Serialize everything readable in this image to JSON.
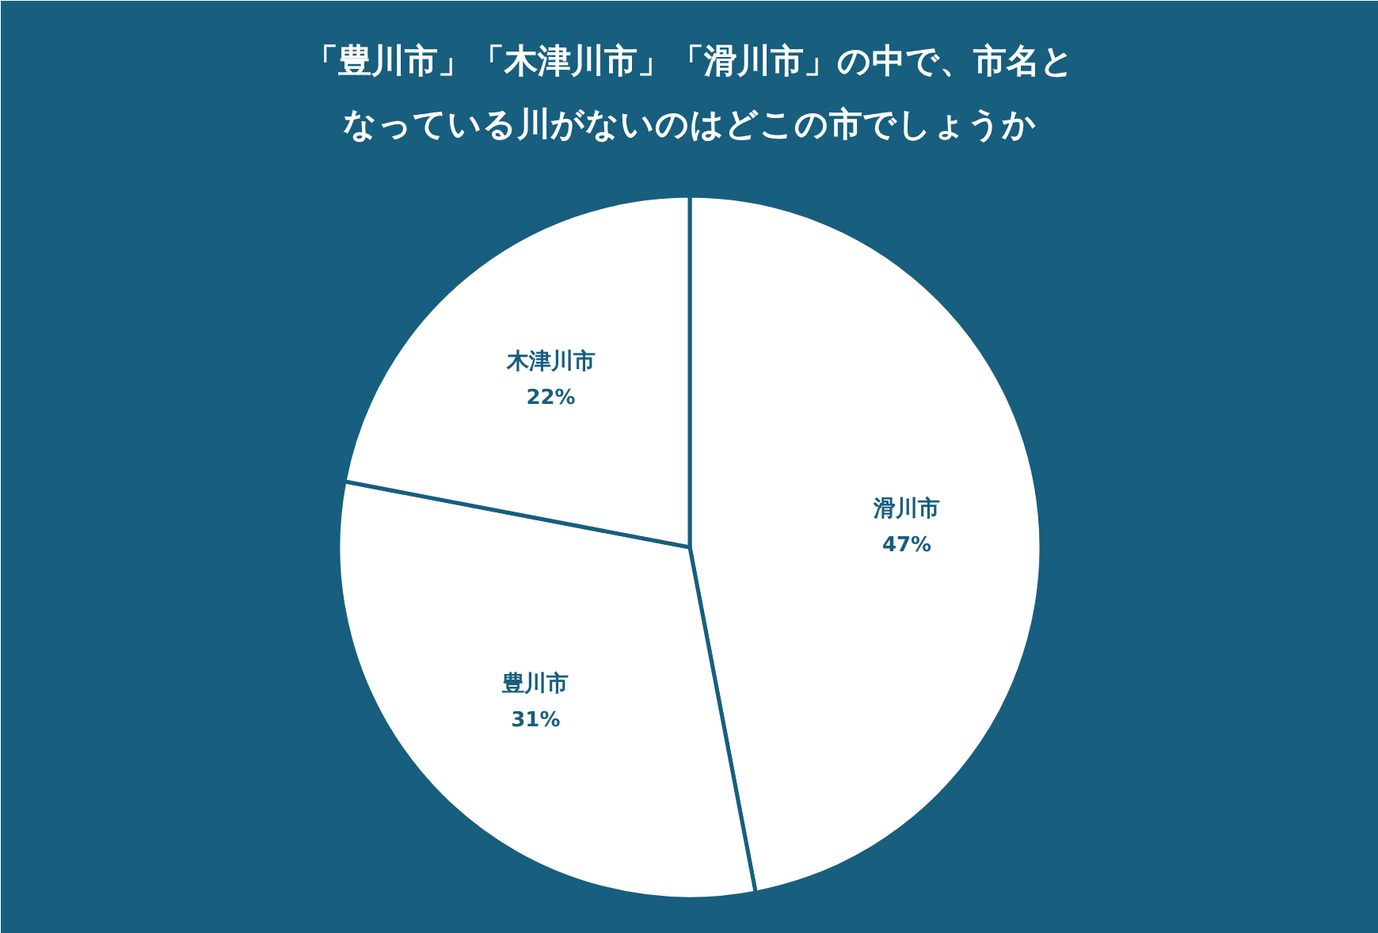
{
  "chart_data": {
    "type": "pie",
    "title": "「豊川市」「木津川市」「滑川市」の中で、市名となっている川がないのはどこの市でしょうか",
    "categories": [
      "滑川市",
      "豊川市",
      "木津川市"
    ],
    "values": [
      47,
      31,
      22
    ],
    "value_labels": [
      "47%",
      "31%",
      "22%"
    ],
    "colors": [
      "#ffffff",
      "#ffffff",
      "#ffffff"
    ]
  }
}
